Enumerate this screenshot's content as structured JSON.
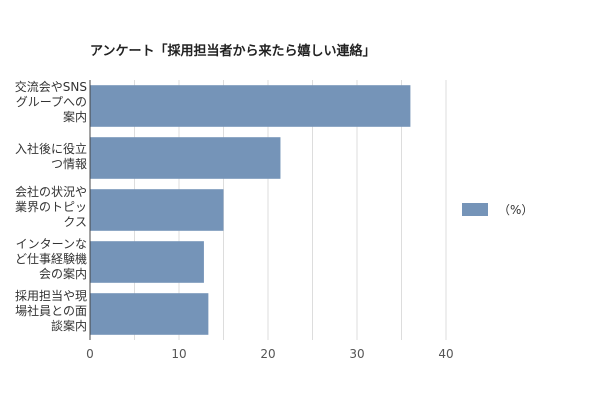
{
  "chart_data": {
    "type": "bar",
    "orientation": "horizontal",
    "title": "アンケート「採用担当者から来たら嬉しい連絡」",
    "categories": [
      "交流会やSNSグループへの案内",
      "入社後に役立つ情報",
      "会社の状況や業界のトピックス",
      "インターンなど仕事経験機会の案内",
      "採用担当や現場社員との面談案内"
    ],
    "category_lines": [
      [
        "交流会やSNS",
        "グループへの",
        "案内"
      ],
      [
        "入社後に役立",
        "つ情報"
      ],
      [
        "会社の状況や",
        "業界のトピッ",
        "クス"
      ],
      [
        "インターンな",
        "ど仕事経験機",
        "会の案内"
      ],
      [
        "採用担当や現",
        "場社員との面",
        "談案内"
      ]
    ],
    "series": [
      {
        "name": "（%）",
        "values": [
          36,
          21.4,
          15,
          12.8,
          13.3
        ],
        "color": "#7594b8"
      }
    ],
    "xlim": [
      0,
      40
    ],
    "xticks": [
      "0",
      "10",
      "20",
      "30",
      "40"
    ],
    "xlabel": "",
    "ylabel": "",
    "grid": true,
    "legend_position": "right"
  }
}
